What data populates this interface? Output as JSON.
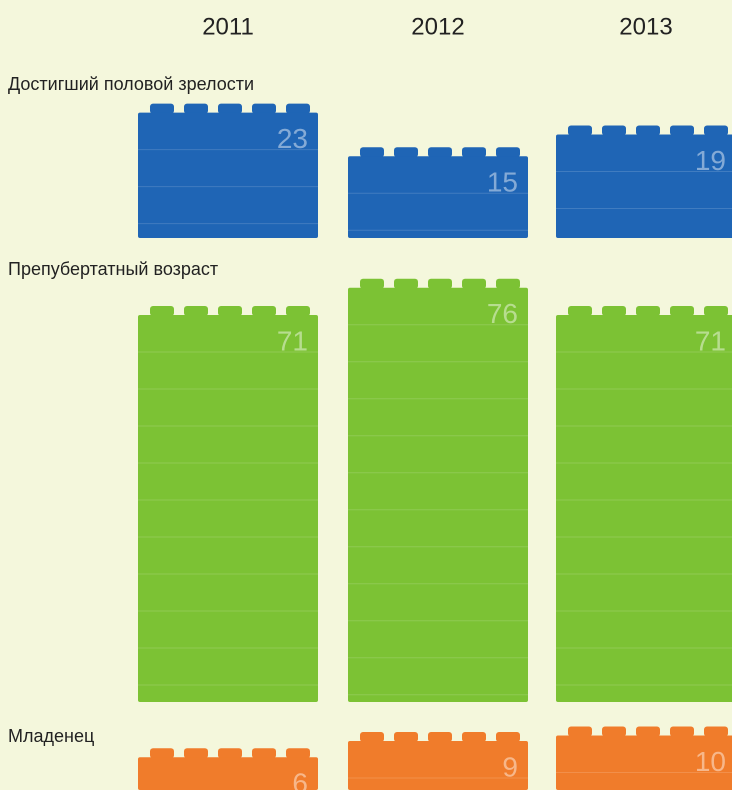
{
  "chart_data": {
    "type": "bar",
    "categories": [
      "2011",
      "2012",
      "2013"
    ],
    "series": [
      {
        "name": "Достигший половой зрелости",
        "color": "#1f65b5",
        "values": [
          23,
          15,
          19
        ]
      },
      {
        "name": "Препубертатный возраст",
        "color": "#7cc234",
        "values": [
          71,
          76,
          71
        ]
      },
      {
        "name": "Младенец",
        "color": "#f07c2b",
        "values": [
          6,
          9,
          10
        ]
      }
    ]
  }
}
